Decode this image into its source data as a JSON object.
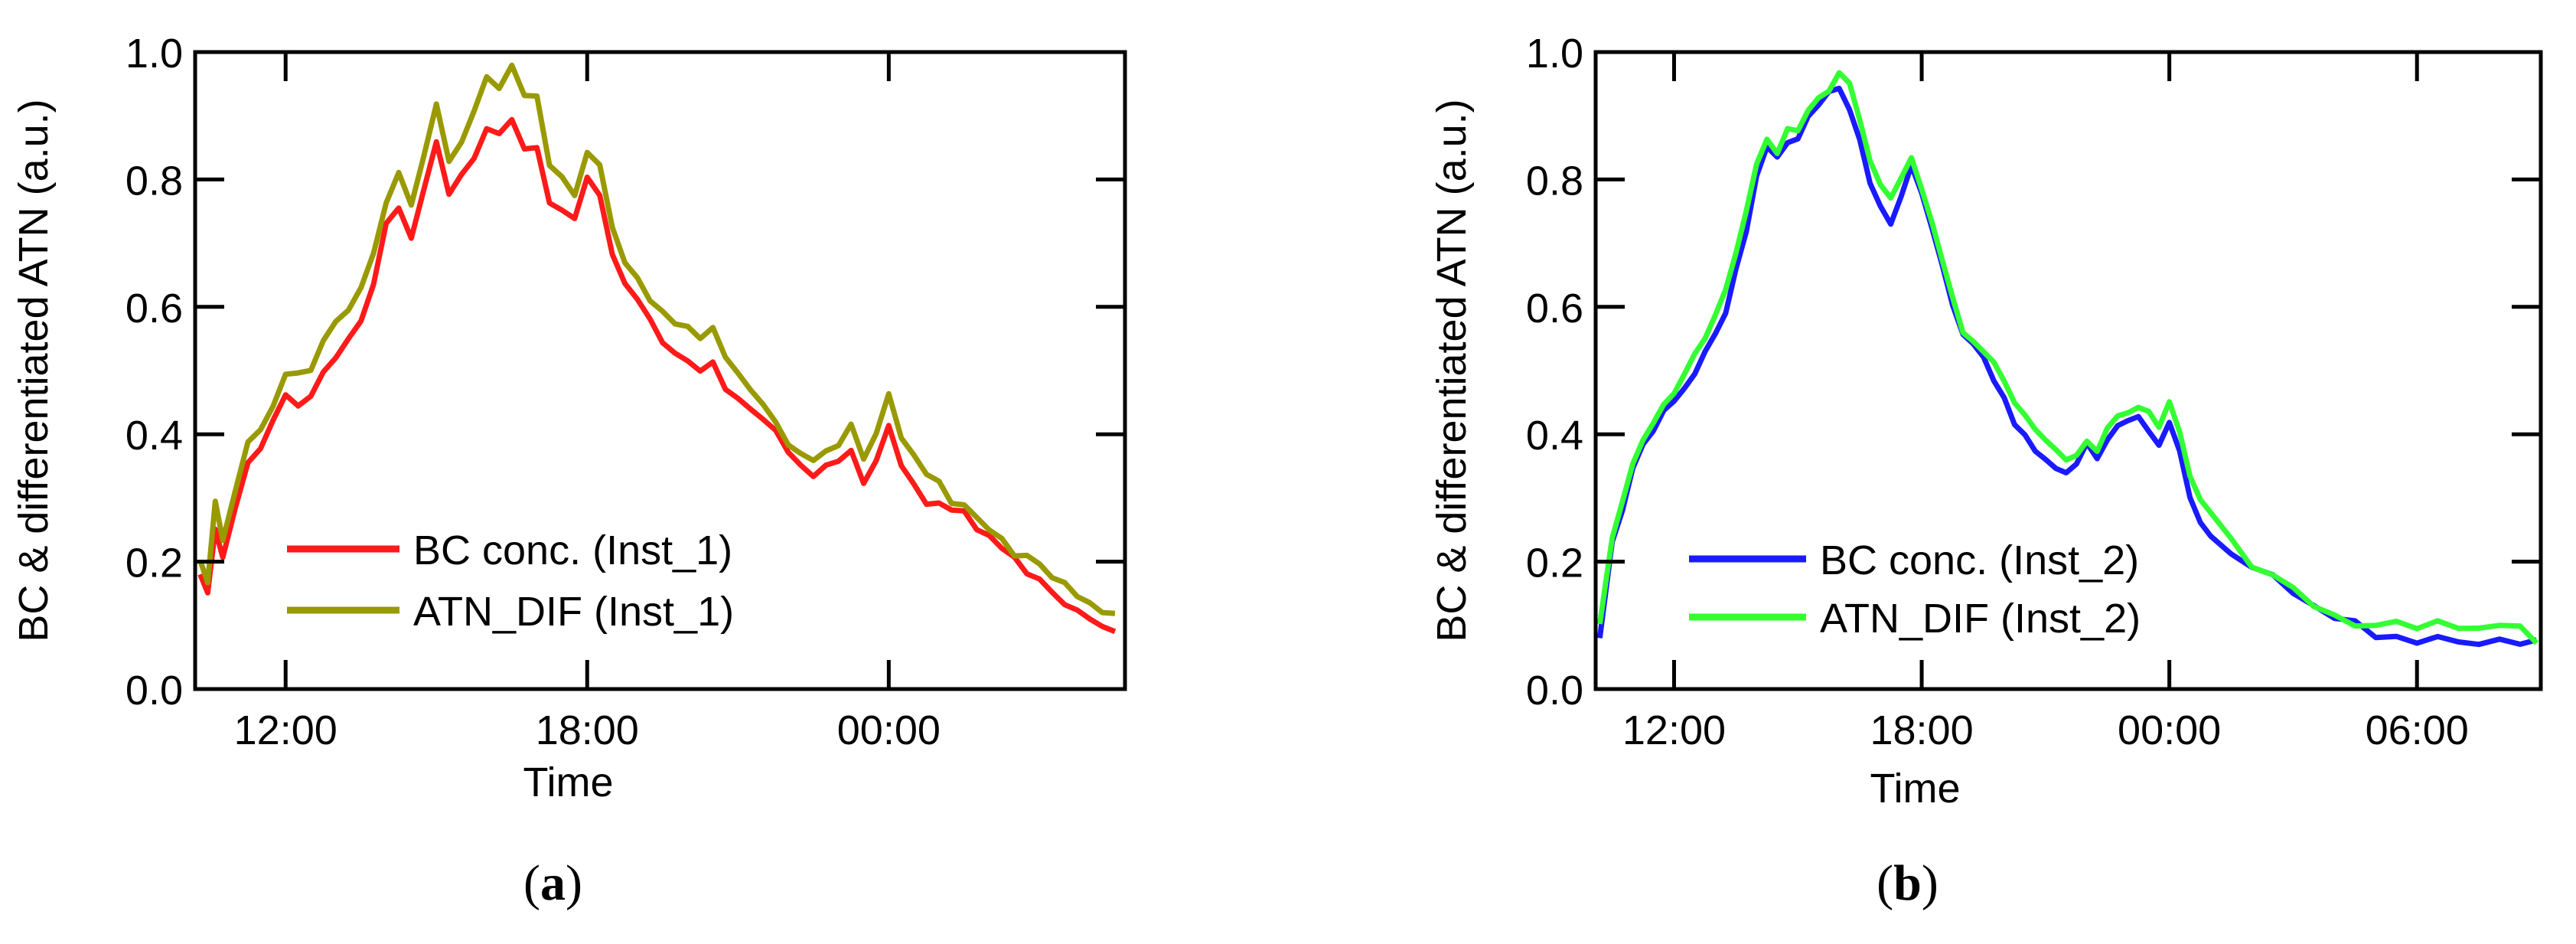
{
  "chart_data": [
    {
      "type": "line",
      "panel_label": "(a)",
      "panel_letter": "a",
      "xlabel": "Time",
      "ylabel": "BC & differentiated ATN (a.u.)",
      "xticks": [
        "12:00",
        "18:00",
        "00:00"
      ],
      "xtick_hours": [
        12,
        18,
        24
      ],
      "xlim_hours": [
        10.2,
        28.7
      ],
      "ylim": [
        0.0,
        1.0
      ],
      "yticks": [
        0.0,
        0.2,
        0.4,
        0.6,
        0.8,
        1.0
      ],
      "ytick_labels": [
        "0.0",
        "0.2",
        "0.4",
        "0.6",
        "0.8",
        "1.0"
      ],
      "grid": false,
      "legend_position": "bottom-left",
      "series": [
        {
          "name": "BC conc. (Inst_1)",
          "color": "#ff1a1a",
          "x_hours": [
            10.3,
            10.45,
            10.6,
            10.75,
            11.0,
            11.25,
            11.5,
            11.75,
            12.0,
            12.25,
            12.5,
            12.75,
            13.0,
            13.25,
            13.5,
            13.75,
            14.0,
            14.25,
            14.5,
            14.75,
            15.0,
            15.25,
            15.5,
            15.75,
            16.0,
            16.25,
            16.5,
            16.75,
            17.0,
            17.25,
            17.5,
            17.75,
            18.0,
            18.25,
            18.5,
            18.75,
            19.0,
            19.25,
            19.5,
            19.75,
            20.0,
            20.25,
            20.5,
            20.75,
            21.0,
            21.25,
            21.5,
            21.75,
            22.0,
            22.25,
            22.5,
            22.75,
            23.0,
            23.25,
            23.5,
            23.75,
            24.0,
            24.25,
            24.5,
            24.75,
            25.0,
            25.25,
            25.5,
            25.75,
            26.0,
            26.25,
            26.5,
            26.75,
            27.0,
            27.25,
            27.5,
            27.75,
            28.0,
            28.25,
            28.5
          ],
          "values": [
            0.18,
            0.14,
            0.25,
            0.2,
            0.28,
            0.35,
            0.37,
            0.42,
            0.47,
            0.45,
            0.46,
            0.5,
            0.53,
            0.55,
            0.58,
            0.63,
            0.72,
            0.75,
            0.7,
            0.78,
            0.85,
            0.77,
            0.8,
            0.84,
            0.89,
            0.88,
            0.9,
            0.86,
            0.86,
            0.77,
            0.74,
            0.73,
            0.8,
            0.77,
            0.68,
            0.63,
            0.6,
            0.57,
            0.55,
            0.53,
            0.52,
            0.5,
            0.52,
            0.48,
            0.46,
            0.43,
            0.42,
            0.4,
            0.37,
            0.35,
            0.33,
            0.35,
            0.36,
            0.38,
            0.33,
            0.36,
            0.42,
            0.36,
            0.33,
            0.3,
            0.29,
            0.28,
            0.27,
            0.25,
            0.24,
            0.22,
            0.2,
            0.19,
            0.18,
            0.16,
            0.14,
            0.13,
            0.12,
            0.11,
            0.1
          ]
        },
        {
          "name": "ATN_DIF (Inst_1)",
          "color": "#999900",
          "x_hours": [
            10.3,
            10.45,
            10.6,
            10.75,
            11.0,
            11.25,
            11.5,
            11.75,
            12.0,
            12.25,
            12.5,
            12.75,
            13.0,
            13.25,
            13.5,
            13.75,
            14.0,
            14.25,
            14.5,
            14.75,
            15.0,
            15.25,
            15.5,
            15.75,
            16.0,
            16.25,
            16.5,
            16.75,
            17.0,
            17.25,
            17.5,
            17.75,
            18.0,
            18.25,
            18.5,
            18.75,
            19.0,
            19.25,
            19.5,
            19.75,
            20.0,
            20.25,
            20.5,
            20.75,
            21.0,
            21.25,
            21.5,
            21.75,
            22.0,
            22.25,
            22.5,
            22.75,
            23.0,
            23.25,
            23.5,
            23.75,
            24.0,
            24.25,
            24.5,
            24.75,
            25.0,
            25.25,
            25.5,
            25.75,
            26.0,
            26.25,
            26.5,
            26.75,
            27.0,
            27.25,
            27.5,
            27.75,
            28.0,
            28.25,
            28.5
          ],
          "values": [
            0.2,
            0.17,
            0.3,
            0.24,
            0.32,
            0.39,
            0.41,
            0.45,
            0.5,
            0.49,
            0.5,
            0.54,
            0.57,
            0.59,
            0.62,
            0.68,
            0.77,
            0.82,
            0.76,
            0.84,
            0.92,
            0.83,
            0.87,
            0.9,
            0.95,
            0.94,
            0.97,
            0.93,
            0.92,
            0.82,
            0.8,
            0.78,
            0.85,
            0.83,
            0.73,
            0.68,
            0.65,
            0.61,
            0.59,
            0.57,
            0.56,
            0.54,
            0.56,
            0.52,
            0.49,
            0.46,
            0.45,
            0.43,
            0.39,
            0.37,
            0.36,
            0.38,
            0.39,
            0.41,
            0.36,
            0.39,
            0.46,
            0.39,
            0.36,
            0.33,
            0.32,
            0.3,
            0.29,
            0.27,
            0.26,
            0.24,
            0.22,
            0.21,
            0.19,
            0.17,
            0.16,
            0.14,
            0.13,
            0.12,
            0.11
          ]
        }
      ]
    },
    {
      "type": "line",
      "panel_label": "(b)",
      "panel_letter": "b",
      "xlabel": "Time",
      "ylabel": "BC & differentiated ATN (a.u.)",
      "xticks": [
        "12:00",
        "18:00",
        "00:00",
        "06:00"
      ],
      "xtick_hours": [
        12,
        18,
        24,
        30
      ],
      "xlim_hours": [
        10.1,
        33.0
      ],
      "ylim": [
        0.0,
        1.0
      ],
      "yticks": [
        0.0,
        0.2,
        0.4,
        0.6,
        0.8,
        1.0
      ],
      "ytick_labels": [
        "0.0",
        "0.2",
        "0.4",
        "0.6",
        "0.8",
        "1.0"
      ],
      "grid": false,
      "legend_position": "bottom-left",
      "series": [
        {
          "name": "BC conc. (Inst_2)",
          "color": "#1a1aff",
          "x_hours": [
            10.2,
            10.5,
            10.75,
            11.0,
            11.25,
            11.5,
            11.75,
            12.0,
            12.25,
            12.5,
            12.75,
            13.0,
            13.25,
            13.5,
            13.75,
            14.0,
            14.25,
            14.5,
            14.75,
            15.0,
            15.25,
            15.5,
            15.75,
            16.0,
            16.25,
            16.5,
            16.75,
            17.0,
            17.25,
            17.5,
            17.75,
            18.0,
            18.25,
            18.5,
            18.75,
            19.0,
            19.25,
            19.5,
            19.75,
            20.0,
            20.25,
            20.5,
            20.75,
            21.0,
            21.25,
            21.5,
            21.75,
            22.0,
            22.25,
            22.5,
            22.75,
            23.0,
            23.25,
            23.5,
            23.75,
            24.0,
            24.25,
            24.5,
            24.75,
            25.0,
            25.5,
            26.0,
            26.5,
            27.0,
            27.5,
            28.0,
            28.5,
            29.0,
            29.5,
            30.0,
            30.5,
            31.0,
            31.5,
            32.0,
            32.5,
            32.9
          ],
          "values": [
            0.08,
            0.22,
            0.28,
            0.34,
            0.38,
            0.4,
            0.43,
            0.45,
            0.48,
            0.5,
            0.53,
            0.56,
            0.6,
            0.66,
            0.72,
            0.8,
            0.84,
            0.83,
            0.85,
            0.86,
            0.89,
            0.91,
            0.93,
            0.95,
            0.92,
            0.87,
            0.8,
            0.77,
            0.74,
            0.78,
            0.81,
            0.77,
            0.72,
            0.66,
            0.6,
            0.55,
            0.53,
            0.51,
            0.49,
            0.46,
            0.42,
            0.4,
            0.38,
            0.37,
            0.35,
            0.33,
            0.35,
            0.38,
            0.36,
            0.39,
            0.41,
            0.42,
            0.43,
            0.41,
            0.39,
            0.42,
            0.38,
            0.31,
            0.27,
            0.25,
            0.21,
            0.19,
            0.17,
            0.15,
            0.13,
            0.11,
            0.1,
            0.09,
            0.09,
            0.08,
            0.09,
            0.08,
            0.08,
            0.09,
            0.08,
            0.07
          ]
        },
        {
          "name": "ATN_DIF (Inst_2)",
          "color": "#33ff33",
          "x_hours": [
            10.2,
            10.5,
            10.75,
            11.0,
            11.25,
            11.5,
            11.75,
            12.0,
            12.25,
            12.5,
            12.75,
            13.0,
            13.25,
            13.5,
            13.75,
            14.0,
            14.25,
            14.5,
            14.75,
            15.0,
            15.25,
            15.5,
            15.75,
            16.0,
            16.25,
            16.5,
            16.75,
            17.0,
            17.25,
            17.5,
            17.75,
            18.0,
            18.25,
            18.5,
            18.75,
            19.0,
            19.25,
            19.5,
            19.75,
            20.0,
            20.25,
            20.5,
            20.75,
            21.0,
            21.25,
            21.5,
            21.75,
            22.0,
            22.25,
            22.5,
            22.75,
            23.0,
            23.25,
            23.5,
            23.75,
            24.0,
            24.25,
            24.5,
            24.75,
            25.0,
            25.5,
            26.0,
            26.5,
            27.0,
            27.5,
            28.0,
            28.5,
            29.0,
            29.5,
            30.0,
            30.5,
            31.0,
            31.5,
            32.0,
            32.5,
            32.9
          ],
          "values": [
            0.1,
            0.24,
            0.3,
            0.36,
            0.4,
            0.42,
            0.45,
            0.47,
            0.5,
            0.52,
            0.55,
            0.58,
            0.62,
            0.68,
            0.74,
            0.82,
            0.87,
            0.85,
            0.88,
            0.88,
            0.91,
            0.93,
            0.95,
            0.96,
            0.94,
            0.89,
            0.82,
            0.79,
            0.76,
            0.8,
            0.83,
            0.79,
            0.74,
            0.68,
            0.62,
            0.57,
            0.55,
            0.53,
            0.51,
            0.48,
            0.44,
            0.42,
            0.4,
            0.39,
            0.37,
            0.35,
            0.37,
            0.4,
            0.38,
            0.41,
            0.43,
            0.44,
            0.45,
            0.43,
            0.41,
            0.44,
            0.4,
            0.33,
            0.29,
            0.27,
            0.23,
            0.2,
            0.18,
            0.16,
            0.14,
            0.12,
            0.11,
            0.1,
            0.1,
            0.09,
            0.1,
            0.09,
            0.09,
            0.1,
            0.09,
            0.08
          ]
        }
      ]
    }
  ]
}
